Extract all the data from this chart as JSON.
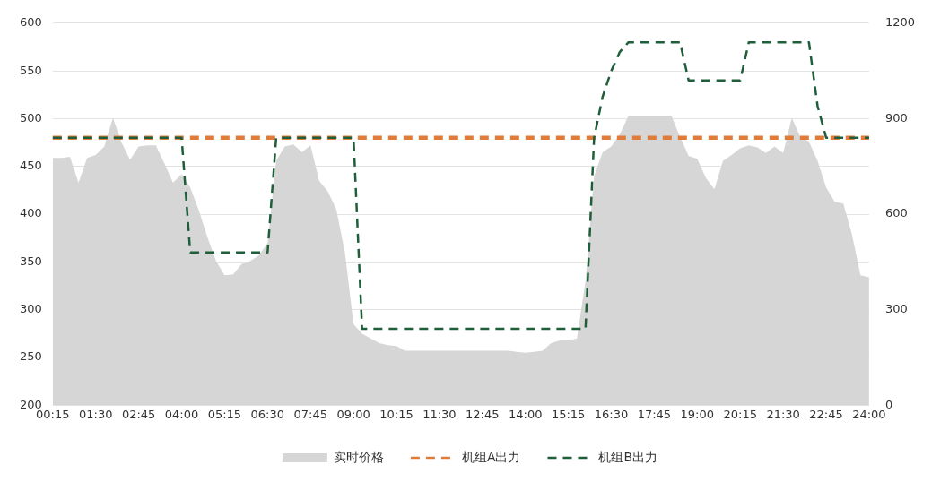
{
  "chart_data": {
    "type": "line",
    "categories": [
      "00:15",
      null,
      null,
      null,
      null,
      "01:30",
      null,
      null,
      null,
      null,
      "02:45",
      null,
      null,
      null,
      null,
      "04:00",
      null,
      null,
      null,
      null,
      "05:15",
      null,
      null,
      null,
      null,
      "06:30",
      null,
      null,
      null,
      null,
      "07:45",
      null,
      null,
      null,
      null,
      "09:00",
      null,
      null,
      null,
      null,
      "10:15",
      null,
      null,
      null,
      null,
      "11:30",
      null,
      null,
      null,
      null,
      "12:45",
      null,
      null,
      null,
      null,
      "14:00",
      null,
      null,
      null,
      null,
      "15:15",
      null,
      null,
      null,
      null,
      "16:30",
      null,
      null,
      null,
      null,
      "17:45",
      null,
      null,
      null,
      null,
      "19:00",
      null,
      null,
      null,
      null,
      "20:15",
      null,
      null,
      null,
      null,
      "21:30",
      null,
      null,
      null,
      null,
      "22:45",
      null,
      null,
      null,
      null,
      "24:00"
    ],
    "series": [
      {
        "name": "实时价格",
        "type": "area",
        "color": "#d6d6d6",
        "values": [
          459,
          459,
          460,
          433,
          459,
          462,
          471,
          501,
          475,
          457,
          471,
          472,
          472,
          453,
          433,
          442,
          428,
          404,
          376,
          351,
          336,
          337,
          348,
          351,
          357,
          370,
          456,
          471,
          473,
          465,
          472,
          435,
          424,
          405,
          360,
          285,
          275,
          270,
          265,
          263,
          262,
          257,
          257,
          257,
          257,
          257,
          257,
          257,
          257,
          257,
          257,
          257,
          257,
          257,
          256,
          255,
          256,
          257,
          265,
          268,
          268,
          270,
          330,
          440,
          465,
          471,
          484,
          503,
          503,
          503,
          503,
          503,
          503,
          481,
          461,
          458,
          438,
          426,
          456,
          462,
          469,
          472,
          470,
          464,
          471,
          464,
          501,
          481,
          476,
          456,
          428,
          413,
          411,
          379,
          336,
          334
        ]
      },
      {
        "name": "机组A出力",
        "type": "line",
        "axis": "y2",
        "color": "#e07b39",
        "line_style": "dashed",
        "values": [
          840,
          840,
          840,
          840,
          840,
          840,
          840,
          840,
          840,
          840,
          840,
          840,
          840,
          840,
          840,
          840,
          840,
          840,
          840,
          840,
          840,
          840,
          840,
          840,
          840,
          840,
          840,
          840,
          840,
          840,
          840,
          840,
          840,
          840,
          840,
          840,
          840,
          840,
          840,
          840,
          840,
          840,
          840,
          840,
          840,
          840,
          840,
          840,
          840,
          840,
          840,
          840,
          840,
          840,
          840,
          840,
          840,
          840,
          840,
          840,
          840,
          840,
          840,
          840,
          840,
          840,
          840,
          840,
          840,
          840,
          840,
          840,
          840,
          840,
          840,
          840,
          840,
          840,
          840,
          840,
          840,
          840,
          840,
          840,
          840,
          840,
          840,
          840,
          840,
          840,
          840,
          840,
          840,
          840,
          840,
          840
        ]
      },
      {
        "name": "机组B出力",
        "type": "line",
        "axis": "y2",
        "color": "#1e5e3a",
        "line_style": "dashed",
        "values": [
          840,
          840,
          840,
          840,
          840,
          840,
          840,
          840,
          840,
          840,
          840,
          840,
          840,
          840,
          840,
          840,
          480,
          480,
          480,
          480,
          480,
          480,
          480,
          480,
          480,
          480,
          840,
          840,
          840,
          840,
          840,
          840,
          840,
          840,
          840,
          840,
          240,
          240,
          240,
          240,
          240,
          240,
          240,
          240,
          240,
          240,
          240,
          240,
          240,
          240,
          240,
          240,
          240,
          240,
          240,
          240,
          240,
          240,
          240,
          240,
          240,
          240,
          240,
          840,
          970,
          1050,
          1110,
          1140,
          1140,
          1140,
          1140,
          1140,
          1140,
          1140,
          1020,
          1020,
          1020,
          1020,
          1020,
          1020,
          1020,
          1140,
          1140,
          1140,
          1140,
          1140,
          1140,
          1140,
          1140,
          940,
          840,
          840,
          840,
          840,
          840,
          840
        ]
      }
    ],
    "ylim": [
      200,
      600
    ],
    "yticks": [
      200,
      250,
      300,
      350,
      400,
      450,
      500,
      550,
      600
    ],
    "y2lim": [
      0,
      1200
    ],
    "y2ticks": [
      0,
      300,
      600,
      900,
      1200
    ],
    "grid": "y",
    "legend": "bottom",
    "marker": "none"
  }
}
